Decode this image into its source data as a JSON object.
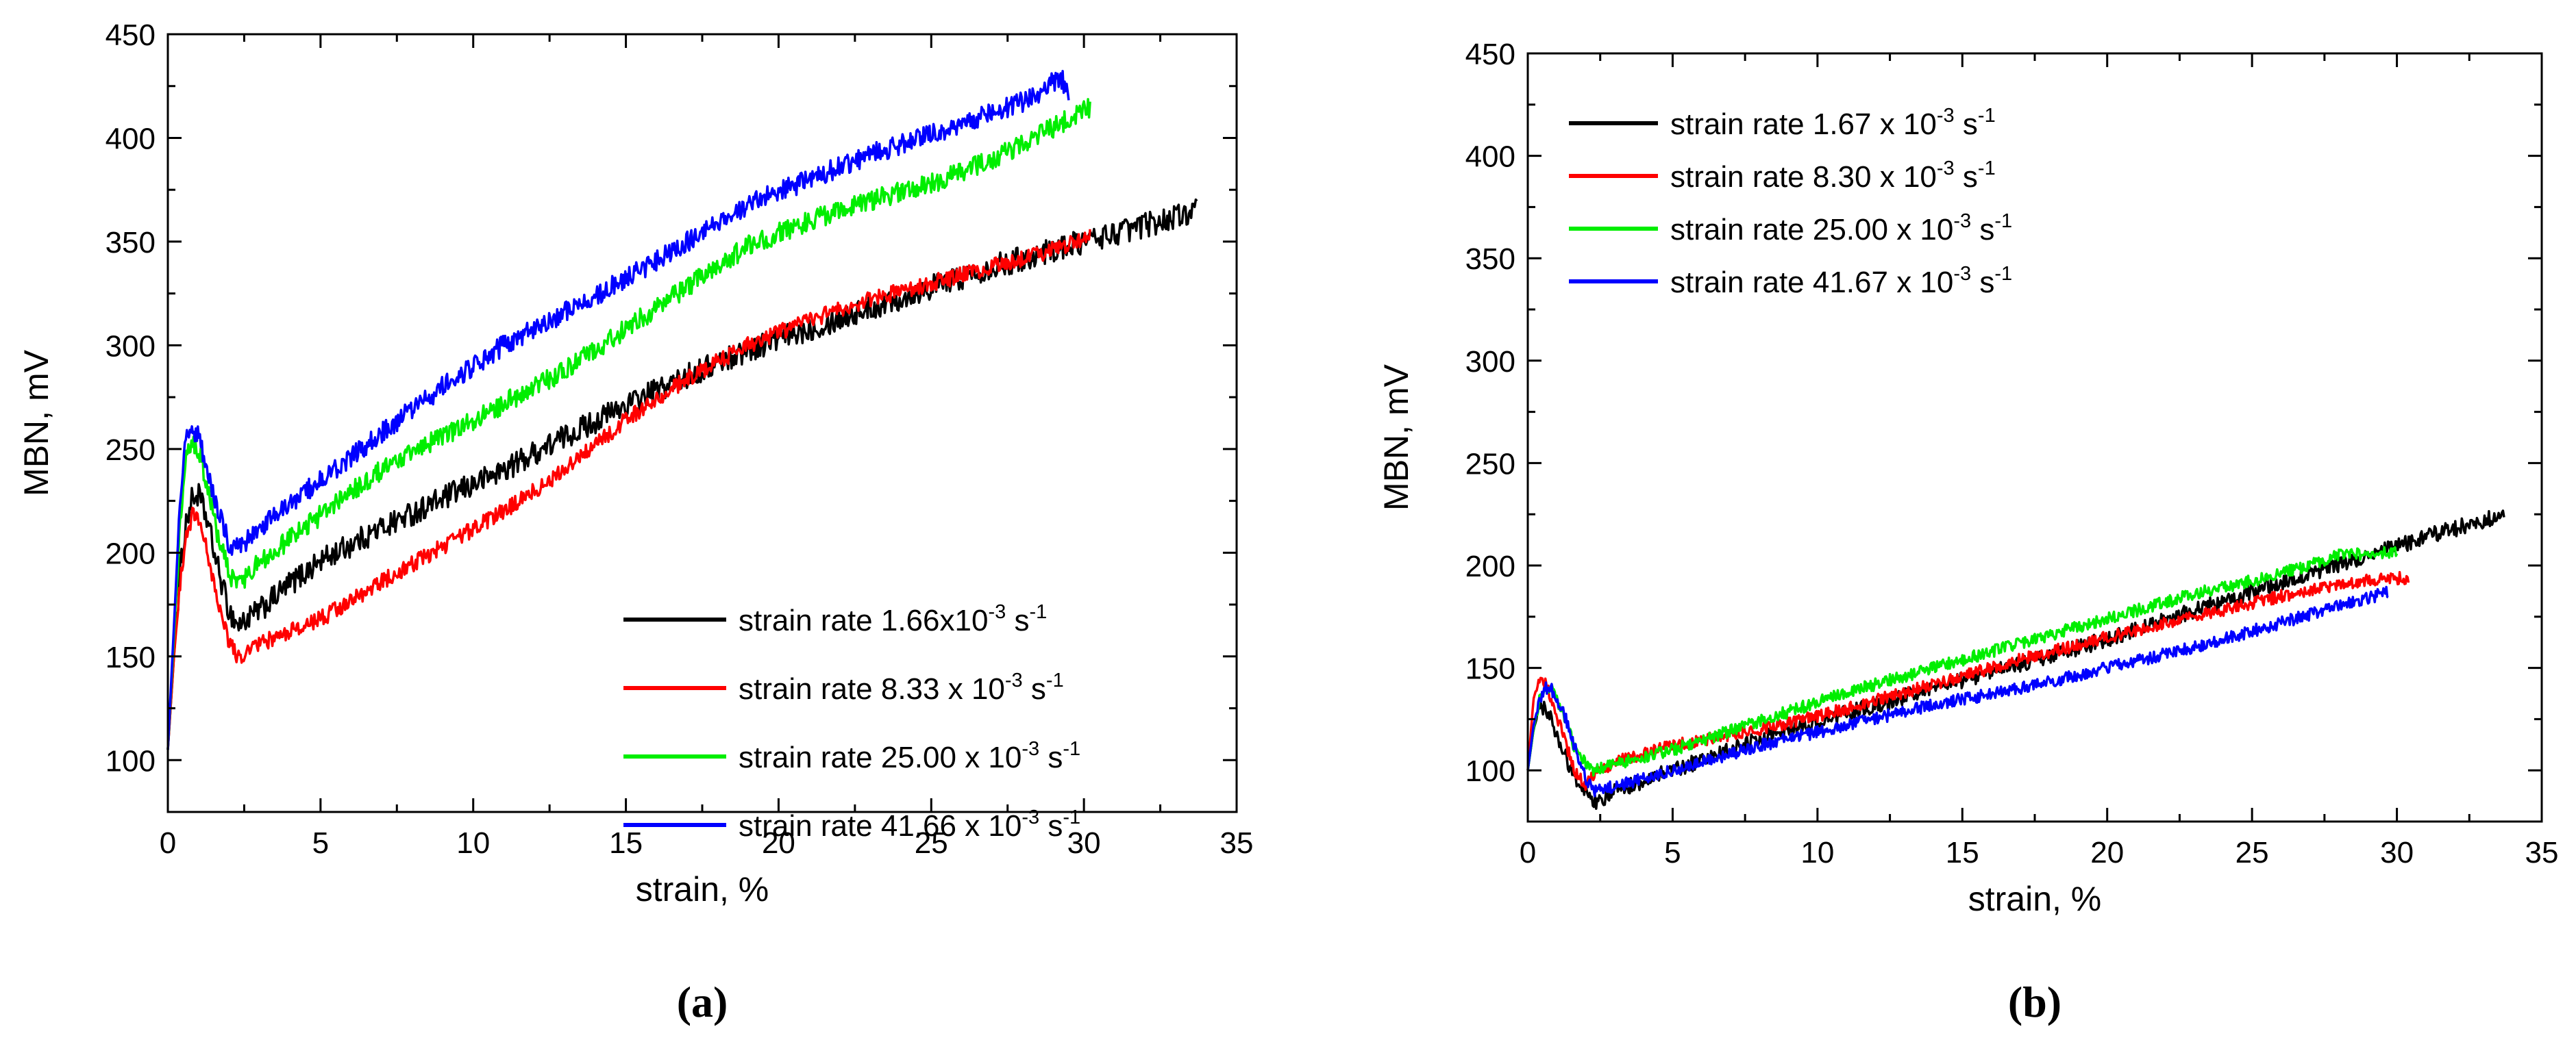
{
  "chart_data": [
    {
      "type": "line",
      "panel_label": "(a)",
      "xlabel": "strain, %",
      "ylabel": "MBN, mV",
      "xlim": [
        0,
        35
      ],
      "ylim": [
        75,
        450
      ],
      "x_ticks": [
        "0",
        "5",
        "10",
        "15",
        "20",
        "25",
        "30",
        "35"
      ],
      "y_ticks": [
        "100",
        "150",
        "200",
        "250",
        "300",
        "350",
        "400",
        "450"
      ],
      "legend_position": "bottom-right",
      "series": [
        {
          "name": "strain rate 1.66x10",
          "sup": "-3",
          "unit": " s",
          "unit_sup": "-1",
          "color": "#000000",
          "noise": 6,
          "points": [
            [
              0,
              105
            ],
            [
              0.2,
              150
            ],
            [
              0.4,
              190
            ],
            [
              0.6,
              215
            ],
            [
              0.8,
              226
            ],
            [
              1.0,
              228
            ],
            [
              1.3,
              215
            ],
            [
              1.6,
              195
            ],
            [
              2.0,
              172
            ],
            [
              2.3,
              165
            ],
            [
              3,
              172
            ],
            [
              4,
              185
            ],
            [
              5,
              196
            ],
            [
              7,
              212
            ],
            [
              9,
              226
            ],
            [
              11,
              240
            ],
            [
              13,
              256
            ],
            [
              15,
              271
            ],
            [
              17,
              285
            ],
            [
              19,
              298
            ],
            [
              21,
              308
            ],
            [
              23,
              318
            ],
            [
              25,
              328
            ],
            [
              27,
              338
            ],
            [
              29,
              346
            ],
            [
              31,
              354
            ],
            [
              33,
              362
            ],
            [
              33.7,
              365
            ]
          ]
        },
        {
          "name": "strain rate 8.33 x 10",
          "sup": "-3",
          "unit": " s",
          "unit_sup": "-1",
          "color": "#ff0000",
          "noise": 4,
          "points": [
            [
              0,
              105
            ],
            [
              0.2,
              150
            ],
            [
              0.4,
              185
            ],
            [
              0.6,
              208
            ],
            [
              0.8,
              218
            ],
            [
              1.0,
              215
            ],
            [
              1.3,
              200
            ],
            [
              1.6,
              180
            ],
            [
              2.0,
              157
            ],
            [
              2.3,
              150
            ],
            [
              3,
              156
            ],
            [
              5,
              168
            ],
            [
              7,
              186
            ],
            [
              9,
              203
            ],
            [
              11,
              220
            ],
            [
              13,
              240
            ],
            [
              15,
              264
            ],
            [
              17,
              284
            ],
            [
              19,
              300
            ],
            [
              21,
              312
            ],
            [
              23,
              322
            ],
            [
              25,
              330
            ],
            [
              27,
              338
            ],
            [
              29,
              346
            ],
            [
              30.2,
              352
            ]
          ]
        },
        {
          "name": "strain rate 25.00 x 10",
          "sup": "-3",
          "unit": " s",
          "unit_sup": "-1",
          "color": "#00ee00",
          "noise": 5,
          "points": [
            [
              0,
              105
            ],
            [
              0.2,
              160
            ],
            [
              0.4,
              215
            ],
            [
              0.6,
              245
            ],
            [
              0.8,
              252
            ],
            [
              1.0,
              250
            ],
            [
              1.3,
              232
            ],
            [
              1.6,
              210
            ],
            [
              2.0,
              190
            ],
            [
              2.3,
              185
            ],
            [
              3,
              195
            ],
            [
              5,
              218
            ],
            [
              7,
              240
            ],
            [
              9,
              256
            ],
            [
              11,
              272
            ],
            [
              13,
              288
            ],
            [
              15,
              308
            ],
            [
              17,
              328
            ],
            [
              19,
              348
            ],
            [
              21,
              360
            ],
            [
              23,
              370
            ],
            [
              25,
              378
            ],
            [
              27,
              390
            ],
            [
              29,
              405
            ],
            [
              30.2,
              415
            ]
          ]
        },
        {
          "name": "strain rate 41.66 x 10",
          "sup": "-3",
          "unit": " s",
          "unit_sup": "-1",
          "color": "#0000ff",
          "noise": 5,
          "points": [
            [
              0,
              105
            ],
            [
              0.2,
              165
            ],
            [
              0.4,
              225
            ],
            [
              0.6,
              255
            ],
            [
              0.8,
              258
            ],
            [
              1.0,
              256
            ],
            [
              1.3,
              240
            ],
            [
              1.6,
              222
            ],
            [
              2.0,
              205
            ],
            [
              2.3,
              202
            ],
            [
              3,
              212
            ],
            [
              5,
              235
            ],
            [
              7,
              258
            ],
            [
              9,
              280
            ],
            [
              11,
              300
            ],
            [
              13,
              316
            ],
            [
              15,
              332
            ],
            [
              17,
              350
            ],
            [
              19,
              368
            ],
            [
              21,
              380
            ],
            [
              23,
              392
            ],
            [
              25,
              402
            ],
            [
              27,
              412
            ],
            [
              28.5,
              420
            ],
            [
              29.2,
              430
            ],
            [
              29.5,
              422
            ]
          ]
        }
      ]
    },
    {
      "type": "line",
      "panel_label": "(b)",
      "xlabel": "strain, %",
      "ylabel": "MBN, mV",
      "xlim": [
        0,
        35
      ],
      "ylim": [
        75,
        450
      ],
      "x_ticks": [
        "0",
        "5",
        "10",
        "15",
        "20",
        "25",
        "30",
        "35"
      ],
      "y_ticks": [
        "100",
        "150",
        "200",
        "250",
        "300",
        "350",
        "400",
        "450"
      ],
      "legend_position": "top-left",
      "series": [
        {
          "name": "strain rate 1.67 x 10",
          "sup": "-3",
          "unit": " s",
          "unit_sup": "-1",
          "color": "#000000",
          "noise": 4,
          "points": [
            [
              0,
              100
            ],
            [
              0.2,
              120
            ],
            [
              0.4,
              130
            ],
            [
              0.6,
              132
            ],
            [
              0.8,
              125
            ],
            [
              1.2,
              110
            ],
            [
              1.6,
              98
            ],
            [
              2.0,
              88
            ],
            [
              2.3,
              84
            ],
            [
              3,
              90
            ],
            [
              5,
              100
            ],
            [
              8,
              115
            ],
            [
              11,
              128
            ],
            [
              14,
              140
            ],
            [
              17,
              152
            ],
            [
              20,
              164
            ],
            [
              23,
              178
            ],
            [
              26,
              192
            ],
            [
              29,
              205
            ],
            [
              31,
              214
            ],
            [
              33,
              222
            ],
            [
              33.7,
              225
            ]
          ]
        },
        {
          "name": "strain rate 8.30 x 10",
          "sup": "-3",
          "unit": " s",
          "unit_sup": "-1",
          "color": "#ff0000",
          "noise": 3,
          "points": [
            [
              0,
              100
            ],
            [
              0.2,
              135
            ],
            [
              0.4,
              145
            ],
            [
              0.6,
              143
            ],
            [
              0.8,
              135
            ],
            [
              1.2,
              118
            ],
            [
              1.6,
              100
            ],
            [
              2.0,
              93
            ],
            [
              2.3,
              98
            ],
            [
              3,
              104
            ],
            [
              5,
              112
            ],
            [
              8,
              120
            ],
            [
              11,
              130
            ],
            [
              14,
              142
            ],
            [
              17,
              154
            ],
            [
              20,
              165
            ],
            [
              23,
              175
            ],
            [
              26,
              185
            ],
            [
              29,
              193
            ],
            [
              30.4,
              194
            ]
          ]
        },
        {
          "name": "strain rate 25.00 x 10",
          "sup": "-3",
          "unit": " s",
          "unit_sup": "-1",
          "color": "#00ee00",
          "noise": 3,
          "points": [
            [
              0,
              100
            ],
            [
              0.2,
              120
            ],
            [
              0.4,
              135
            ],
            [
              0.6,
              142
            ],
            [
              0.8,
              140
            ],
            [
              1.2,
              128
            ],
            [
              1.6,
              112
            ],
            [
              2.0,
              103
            ],
            [
              2.3,
              100
            ],
            [
              3,
              103
            ],
            [
              5,
              110
            ],
            [
              8,
              124
            ],
            [
              11,
              138
            ],
            [
              14,
              150
            ],
            [
              17,
              162
            ],
            [
              20,
              174
            ],
            [
              23,
              186
            ],
            [
              26,
              196
            ],
            [
              28,
              205
            ],
            [
              30,
              207
            ]
          ]
        },
        {
          "name": "strain rate 41.67 x 10",
          "sup": "-3",
          "unit": " s",
          "unit_sup": "-1",
          "color": "#0000ff",
          "noise": 3,
          "points": [
            [
              0,
              100
            ],
            [
              0.2,
              122
            ],
            [
              0.4,
              134
            ],
            [
              0.6,
              140
            ],
            [
              0.8,
              140
            ],
            [
              1.2,
              130
            ],
            [
              1.6,
              112
            ],
            [
              2.0,
              96
            ],
            [
              2.3,
              90
            ],
            [
              3,
              92
            ],
            [
              5,
              100
            ],
            [
              8,
              112
            ],
            [
              11,
              122
            ],
            [
              14,
              132
            ],
            [
              17,
              140
            ],
            [
              20,
              150
            ],
            [
              23,
              160
            ],
            [
              26,
              172
            ],
            [
              28.5,
              182
            ],
            [
              29.7,
              187
            ]
          ]
        }
      ]
    }
  ]
}
